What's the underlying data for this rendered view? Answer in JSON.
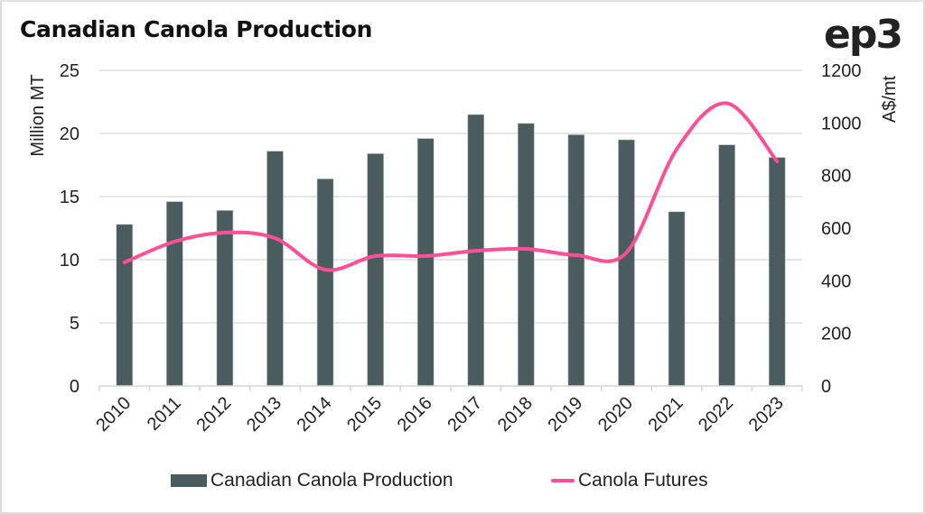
{
  "chart_data": {
    "type": "bar",
    "title": "Canadian Canola Production",
    "brand": "ep3",
    "categories": [
      "2010",
      "2011",
      "2012",
      "2013",
      "2014",
      "2015",
      "2016",
      "2017",
      "2018",
      "2019",
      "2020",
      "2021",
      "2022",
      "2023"
    ],
    "series": [
      {
        "name": "Canadian Canola Production",
        "type": "bar",
        "axis": "left",
        "color": "#4a5c5d",
        "values": [
          12.8,
          14.6,
          13.9,
          18.6,
          16.4,
          18.4,
          19.6,
          21.5,
          20.8,
          19.9,
          19.5,
          13.8,
          19.1,
          18.1
        ]
      },
      {
        "name": "Canola Futures",
        "type": "line",
        "smooth": true,
        "axis": "right",
        "color": "#ff4f97",
        "values": [
          470,
          549,
          583,
          562,
          442,
          494,
          494,
          514,
          521,
          497,
          507,
          900,
          1075,
          854
        ]
      }
    ],
    "left_axis": {
      "label": "Million MT",
      "min": 0,
      "max": 25,
      "ticks": [
        "0",
        "5",
        "10",
        "15",
        "20",
        "25"
      ]
    },
    "right_axis": {
      "label": "A$/mt",
      "min": 0,
      "max": 1200,
      "ticks": [
        "0",
        "200",
        "400",
        "600",
        "800",
        "1000",
        "1200"
      ]
    },
    "xlabel": "",
    "grid": true,
    "legend": "bottom"
  }
}
